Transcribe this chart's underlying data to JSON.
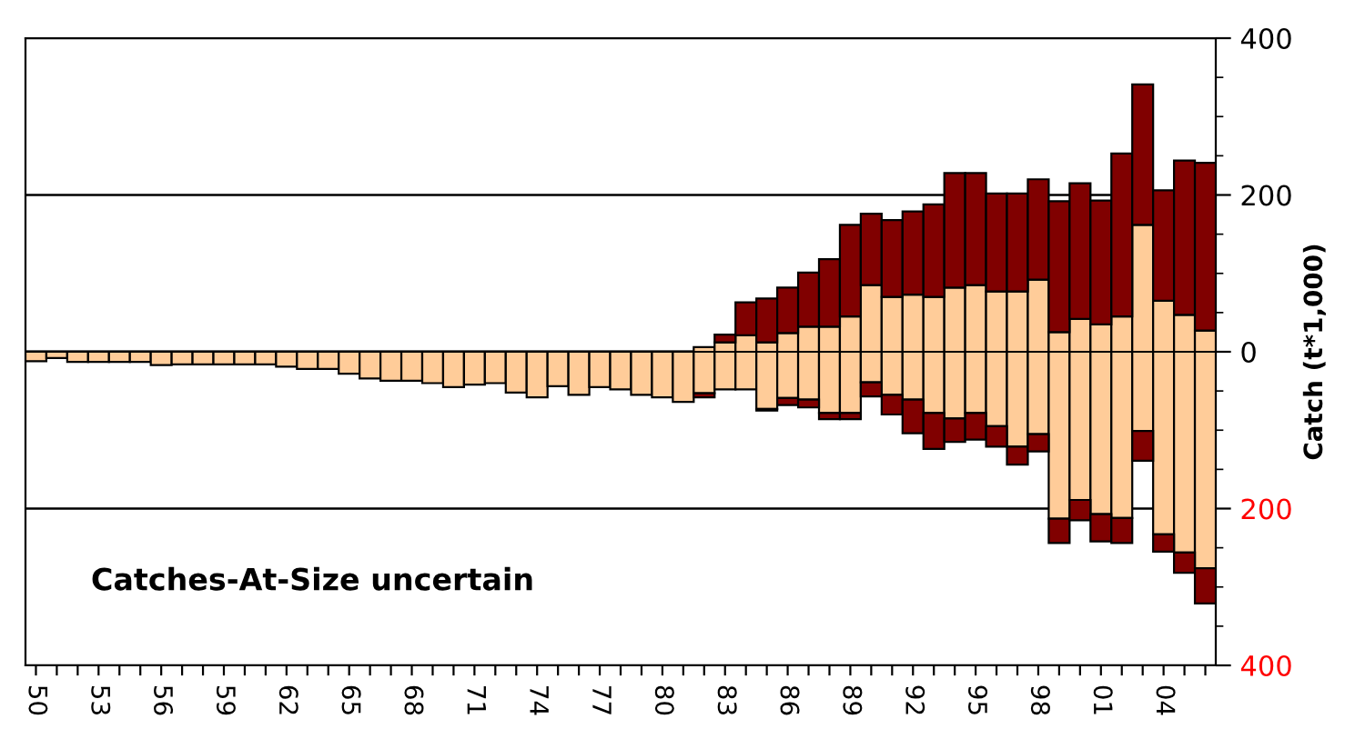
{
  "chart_data": {
    "type": "bar",
    "stacked": true,
    "categories": [
      "50",
      null,
      null,
      "53",
      null,
      null,
      "56",
      null,
      null,
      "59",
      null,
      null,
      "62",
      null,
      null,
      "65",
      null,
      null,
      "68",
      null,
      null,
      "71",
      null,
      null,
      "74",
      null,
      null,
      "77",
      null,
      null,
      "80",
      null,
      null,
      "83",
      null,
      null,
      "86",
      null,
      null,
      "89",
      null,
      null,
      "92",
      null,
      null,
      "95",
      null,
      null,
      "98",
      null,
      null,
      "01",
      null,
      null,
      "04",
      null,
      null
    ],
    "series": [
      {
        "color": "#ffcc99",
        "values": [
          null,
          null,
          null,
          null,
          null,
          null,
          null,
          null,
          null,
          null,
          null,
          null,
          null,
          null,
          null,
          null,
          null,
          null,
          null,
          null,
          null,
          null,
          null,
          null,
          null,
          null,
          null,
          null,
          null,
          null,
          null,
          null,
          6,
          12,
          21,
          12,
          24,
          32,
          32,
          45,
          85,
          70,
          73,
          70,
          82,
          85,
          77,
          77,
          92,
          25,
          42,
          35,
          45,
          162,
          65,
          47,
          27
        ]
      },
      {
        "color": "#800000",
        "values": [
          null,
          null,
          null,
          null,
          null,
          null,
          null,
          null,
          null,
          null,
          null,
          null,
          null,
          null,
          null,
          null,
          null,
          null,
          null,
          null,
          null,
          null,
          null,
          null,
          null,
          null,
          null,
          null,
          null,
          null,
          null,
          null,
          null,
          10,
          42,
          56,
          58,
          69,
          86,
          117,
          91,
          98,
          106,
          118,
          146,
          143,
          125,
          125,
          128,
          167,
          173,
          158,
          208,
          179,
          141,
          197,
          214
        ]
      },
      {
        "color": "#ffcc99",
        "values": [
          -12,
          -8,
          -13,
          -13,
          -13,
          -13,
          -17,
          -16,
          -16,
          -16,
          -16,
          -16,
          -19,
          -22,
          -22,
          -28,
          -34,
          -37,
          -37,
          -40,
          -45,
          -42,
          -40,
          -52,
          -58,
          -44,
          -55,
          -45,
          -48,
          -55,
          -58,
          -64,
          -53,
          -48,
          -48,
          -73,
          -59,
          -61,
          -78,
          -78,
          -39,
          -55,
          -61,
          -78,
          -85,
          -78,
          -95,
          -121,
          -105,
          -213,
          -189,
          -207,
          -212,
          -101,
          -233,
          -256,
          -276
        ]
      },
      {
        "color": "#800000",
        "values": [
          null,
          null,
          null,
          null,
          null,
          null,
          null,
          null,
          null,
          null,
          null,
          null,
          null,
          null,
          null,
          null,
          null,
          null,
          null,
          null,
          null,
          null,
          null,
          null,
          null,
          null,
          null,
          null,
          null,
          null,
          null,
          null,
          -5,
          null,
          null,
          -2,
          -9,
          -10,
          -8,
          -8,
          -18,
          -25,
          -43,
          -46,
          -30,
          -34,
          -26,
          -23,
          -22,
          -31,
          -26,
          -35,
          -32,
          -38,
          -22,
          -26,
          -45
        ]
      }
    ],
    "ylim": [
      -400,
      400
    ],
    "yticks": [
      400,
      200,
      0,
      {
        "value": -200,
        "label": "200"
      },
      {
        "value": -400,
        "label": "400"
      }
    ],
    "ylabel": "Catch (t*1,000)",
    "grid": "y",
    "annotations": [
      "Catches-At-Size uncertain"
    ]
  }
}
